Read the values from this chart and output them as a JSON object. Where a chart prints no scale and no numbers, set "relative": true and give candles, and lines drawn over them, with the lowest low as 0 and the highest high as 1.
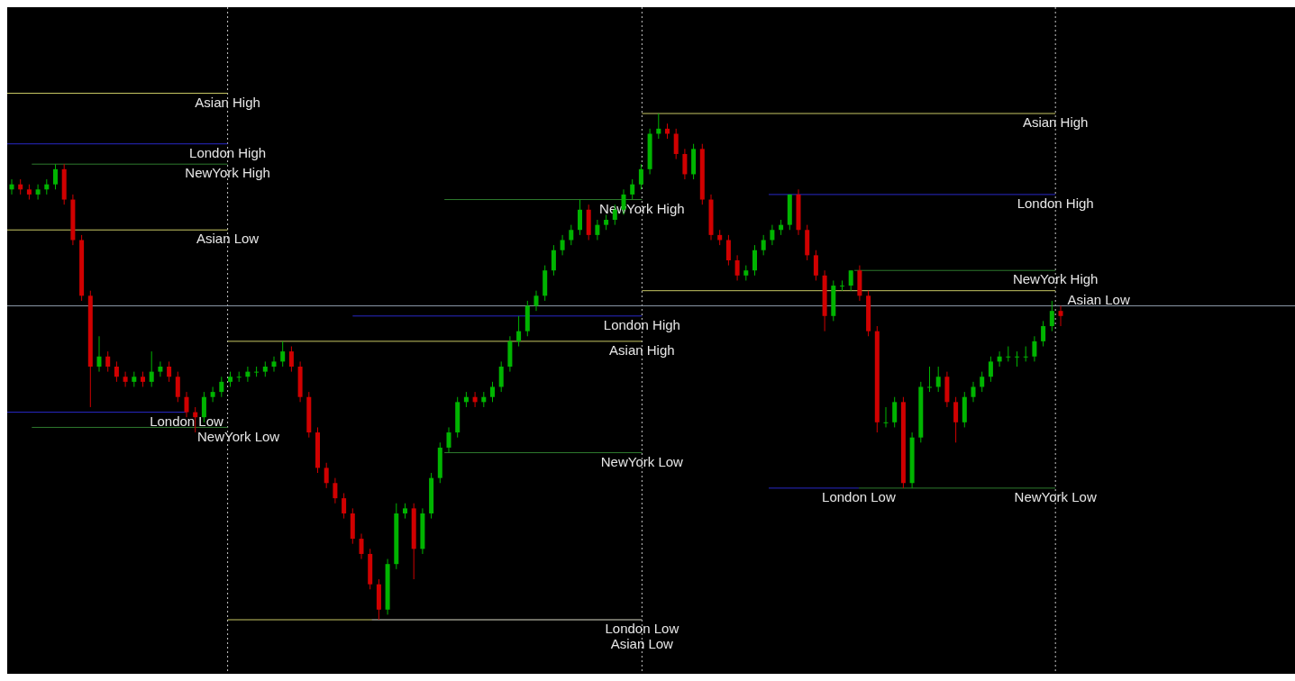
{
  "chart_data": {
    "type": "candlestick",
    "relative": true,
    "categories": [
      null,
      null,
      null,
      null,
      null,
      null,
      null,
      null,
      null,
      null,
      null,
      null,
      null,
      null,
      null,
      null,
      null,
      null,
      null,
      null,
      null,
      null,
      null,
      null,
      null,
      null,
      null,
      null,
      null,
      null,
      null,
      null,
      null,
      null,
      null,
      null,
      null,
      null,
      null,
      null,
      null,
      null,
      null,
      null,
      null,
      null,
      null,
      null,
      null,
      null,
      null,
      null,
      null,
      null,
      null,
      null,
      null,
      null,
      null,
      null,
      null,
      null,
      null,
      null,
      null,
      null,
      null,
      null,
      null,
      null,
      null,
      null,
      null,
      null,
      null,
      null,
      null,
      null,
      null,
      null,
      null,
      null,
      null,
      null,
      null,
      null,
      null,
      null,
      null,
      null,
      null,
      null,
      null,
      null,
      null,
      null,
      null,
      null,
      null,
      null,
      null,
      null,
      null,
      null,
      null,
      null,
      null,
      null,
      null,
      null,
      null,
      null,
      null,
      null,
      null,
      null,
      null,
      null,
      null,
      null,
      null
    ],
    "ohlc": [
      [
        0.85,
        0.87,
        0.84,
        0.86
      ],
      [
        0.86,
        0.87,
        0.84,
        0.85
      ],
      [
        0.85,
        0.86,
        0.83,
        0.84
      ],
      [
        0.84,
        0.86,
        0.83,
        0.85
      ],
      [
        0.85,
        0.87,
        0.84,
        0.86
      ],
      [
        0.86,
        0.9,
        0.85,
        0.89
      ],
      [
        0.89,
        0.9,
        0.82,
        0.83
      ],
      [
        0.83,
        0.84,
        0.74,
        0.75
      ],
      [
        0.75,
        0.76,
        0.63,
        0.64
      ],
      [
        0.64,
        0.65,
        0.42,
        0.5
      ],
      [
        0.5,
        0.56,
        0.49,
        0.52
      ],
      [
        0.52,
        0.53,
        0.49,
        0.5
      ],
      [
        0.5,
        0.51,
        0.47,
        0.48
      ],
      [
        0.48,
        0.49,
        0.46,
        0.47
      ],
      [
        0.47,
        0.49,
        0.46,
        0.48
      ],
      [
        0.48,
        0.49,
        0.46,
        0.47
      ],
      [
        0.47,
        0.53,
        0.46,
        0.49
      ],
      [
        0.49,
        0.51,
        0.48,
        0.5
      ],
      [
        0.5,
        0.51,
        0.47,
        0.48
      ],
      [
        0.48,
        0.49,
        0.43,
        0.44
      ],
      [
        0.44,
        0.45,
        0.4,
        0.41
      ],
      [
        0.41,
        0.42,
        0.37,
        0.4
      ],
      [
        0.4,
        0.45,
        0.39,
        0.44
      ],
      [
        0.44,
        0.46,
        0.43,
        0.45
      ],
      [
        0.45,
        0.48,
        0.44,
        0.47
      ],
      [
        0.47,
        0.49,
        0.46,
        0.48
      ],
      [
        0.48,
        0.49,
        0.47,
        0.48
      ],
      [
        0.48,
        0.5,
        0.47,
        0.49
      ],
      [
        0.49,
        0.5,
        0.48,
        0.49
      ],
      [
        0.49,
        0.51,
        0.48,
        0.5
      ],
      [
        0.5,
        0.52,
        0.49,
        0.51
      ],
      [
        0.51,
        0.55,
        0.5,
        0.53
      ],
      [
        0.53,
        0.54,
        0.49,
        0.5
      ],
      [
        0.5,
        0.51,
        0.43,
        0.44
      ],
      [
        0.44,
        0.45,
        0.36,
        0.37
      ],
      [
        0.37,
        0.38,
        0.29,
        0.3
      ],
      [
        0.3,
        0.31,
        0.26,
        0.27
      ],
      [
        0.27,
        0.28,
        0.23,
        0.24
      ],
      [
        0.24,
        0.25,
        0.2,
        0.21
      ],
      [
        0.21,
        0.22,
        0.15,
        0.16
      ],
      [
        0.16,
        0.17,
        0.12,
        0.13
      ],
      [
        0.13,
        0.14,
        0.06,
        0.07
      ],
      [
        0.07,
        0.08,
        0.0,
        0.02
      ],
      [
        0.02,
        0.12,
        0.01,
        0.11
      ],
      [
        0.11,
        0.23,
        0.1,
        0.21
      ],
      [
        0.21,
        0.23,
        0.2,
        0.22
      ],
      [
        0.22,
        0.23,
        0.08,
        0.14
      ],
      [
        0.14,
        0.22,
        0.13,
        0.21
      ],
      [
        0.21,
        0.29,
        0.2,
        0.28
      ],
      [
        0.28,
        0.35,
        0.27,
        0.34
      ],
      [
        0.34,
        0.38,
        0.33,
        0.37
      ],
      [
        0.37,
        0.44,
        0.36,
        0.43
      ],
      [
        0.43,
        0.45,
        0.42,
        0.44
      ],
      [
        0.44,
        0.45,
        0.42,
        0.43
      ],
      [
        0.43,
        0.45,
        0.42,
        0.44
      ],
      [
        0.44,
        0.47,
        0.43,
        0.46
      ],
      [
        0.46,
        0.51,
        0.45,
        0.5
      ],
      [
        0.5,
        0.56,
        0.49,
        0.55
      ],
      [
        0.55,
        0.6,
        0.54,
        0.57
      ],
      [
        0.57,
        0.63,
        0.56,
        0.62
      ],
      [
        0.62,
        0.65,
        0.61,
        0.64
      ],
      [
        0.64,
        0.7,
        0.63,
        0.69
      ],
      [
        0.69,
        0.74,
        0.68,
        0.73
      ],
      [
        0.73,
        0.76,
        0.72,
        0.75
      ],
      [
        0.75,
        0.78,
        0.74,
        0.77
      ],
      [
        0.77,
        0.83,
        0.76,
        0.81
      ],
      [
        0.81,
        0.82,
        0.75,
        0.76
      ],
      [
        0.76,
        0.79,
        0.75,
        0.78
      ],
      [
        0.78,
        0.8,
        0.77,
        0.79
      ],
      [
        0.79,
        0.82,
        0.78,
        0.81
      ],
      [
        0.81,
        0.85,
        0.8,
        0.84
      ],
      [
        0.84,
        0.87,
        0.83,
        0.86
      ],
      [
        0.86,
        0.9,
        0.85,
        0.89
      ],
      [
        0.89,
        0.97,
        0.88,
        0.96
      ],
      [
        0.96,
        1.0,
        0.95,
        0.97
      ],
      [
        0.97,
        0.98,
        0.95,
        0.96
      ],
      [
        0.96,
        0.97,
        0.91,
        0.92
      ],
      [
        0.92,
        0.93,
        0.87,
        0.88
      ],
      [
        0.88,
        0.94,
        0.87,
        0.93
      ],
      [
        0.93,
        0.94,
        0.82,
        0.83
      ],
      [
        0.83,
        0.84,
        0.75,
        0.76
      ],
      [
        0.76,
        0.77,
        0.74,
        0.75
      ],
      [
        0.75,
        0.76,
        0.7,
        0.71
      ],
      [
        0.71,
        0.72,
        0.67,
        0.68
      ],
      [
        0.68,
        0.7,
        0.67,
        0.69
      ],
      [
        0.69,
        0.74,
        0.68,
        0.73
      ],
      [
        0.73,
        0.76,
        0.72,
        0.75
      ],
      [
        0.75,
        0.78,
        0.74,
        0.77
      ],
      [
        0.77,
        0.79,
        0.76,
        0.78
      ],
      [
        0.78,
        0.84,
        0.77,
        0.84
      ],
      [
        0.84,
        0.85,
        0.76,
        0.77
      ],
      [
        0.77,
        0.78,
        0.71,
        0.72
      ],
      [
        0.72,
        0.73,
        0.67,
        0.68
      ],
      [
        0.68,
        0.69,
        0.57,
        0.6
      ],
      [
        0.6,
        0.67,
        0.59,
        0.66
      ],
      [
        0.66,
        0.67,
        0.65,
        0.66
      ],
      [
        0.66,
        0.69,
        0.65,
        0.69
      ],
      [
        0.69,
        0.7,
        0.63,
        0.64
      ],
      [
        0.64,
        0.65,
        0.56,
        0.57
      ],
      [
        0.57,
        0.58,
        0.37,
        0.39
      ],
      [
        0.39,
        0.42,
        0.38,
        0.39
      ],
      [
        0.39,
        0.44,
        0.38,
        0.43
      ],
      [
        0.43,
        0.44,
        0.26,
        0.27
      ],
      [
        0.27,
        0.37,
        0.26,
        0.36
      ],
      [
        0.36,
        0.47,
        0.35,
        0.46
      ],
      [
        0.46,
        0.5,
        0.45,
        0.46
      ],
      [
        0.46,
        0.5,
        0.45,
        0.48
      ],
      [
        0.48,
        0.49,
        0.42,
        0.43
      ],
      [
        0.43,
        0.44,
        0.35,
        0.39
      ],
      [
        0.39,
        0.45,
        0.38,
        0.44
      ],
      [
        0.44,
        0.47,
        0.43,
        0.46
      ],
      [
        0.46,
        0.49,
        0.45,
        0.48
      ],
      [
        0.48,
        0.52,
        0.47,
        0.51
      ],
      [
        0.51,
        0.53,
        0.5,
        0.52
      ],
      [
        0.52,
        0.54,
        0.51,
        0.52
      ],
      [
        0.52,
        0.53,
        0.5,
        0.52
      ],
      [
        0.52,
        0.54,
        0.51,
        0.52
      ],
      [
        0.52,
        0.56,
        0.51,
        0.55
      ],
      [
        0.55,
        0.59,
        0.54,
        0.58
      ],
      [
        0.58,
        0.63,
        0.57,
        0.61
      ],
      [
        0.61,
        0.62,
        0.58,
        0.6
      ]
    ],
    "ref_lines": [
      {
        "axis": "y",
        "value": 0.62,
        "color": "#8c9aa8"
      },
      {
        "axis": "y",
        "value": 1.04,
        "label": "Asian High",
        "color": "#c8c864"
      },
      {
        "axis": "y",
        "value": 0.94,
        "label": "London High",
        "color": "#2828c8"
      },
      {
        "axis": "y",
        "value": 0.9,
        "label": "NewYork High",
        "color": "#2e7a2e"
      },
      {
        "axis": "y",
        "value": 0.77,
        "label": "Asian Low",
        "color": "#c8c864"
      },
      {
        "axis": "y",
        "value": 0.41,
        "label": "London Low",
        "color": "#2828c8"
      },
      {
        "axis": "y",
        "value": 0.38,
        "label": "NewYork Low",
        "color": "#2e7a2e"
      },
      {
        "axis": "y",
        "value": 0.55,
        "label": "Asian High",
        "color": "#c8c864"
      },
      {
        "axis": "y",
        "value": 0.6,
        "label": "London High",
        "color": "#2828c8"
      },
      {
        "axis": "y",
        "value": 0.83,
        "label": "NewYork High",
        "color": "#2e7a2e"
      },
      {
        "axis": "y",
        "value": 0.33,
        "label": "NewYork Low",
        "color": "#2e7a2e"
      },
      {
        "axis": "y",
        "value": 0.0,
        "label": "London Low",
        "color": "#2828c8"
      },
      {
        "axis": "y",
        "value": 0.0,
        "label": "Asian Low",
        "color": "#c8c864"
      },
      {
        "axis": "y",
        "value": 1.0,
        "label": "Asian High",
        "color": "#c8c864"
      },
      {
        "axis": "y",
        "value": 0.84,
        "label": "London High",
        "color": "#2828c8"
      },
      {
        "axis": "y",
        "value": 0.69,
        "label": "NewYork High",
        "color": "#2e7a2e"
      },
      {
        "axis": "y",
        "value": 0.65,
        "label": "Asian Low",
        "color": "#c8c864"
      },
      {
        "axis": "y",
        "value": 0.26,
        "label": "London Low",
        "color": "#2828c8"
      },
      {
        "axis": "y",
        "value": 0.26,
        "label": "NewYork Low",
        "color": "#2e7a2e"
      }
    ]
  }
}
